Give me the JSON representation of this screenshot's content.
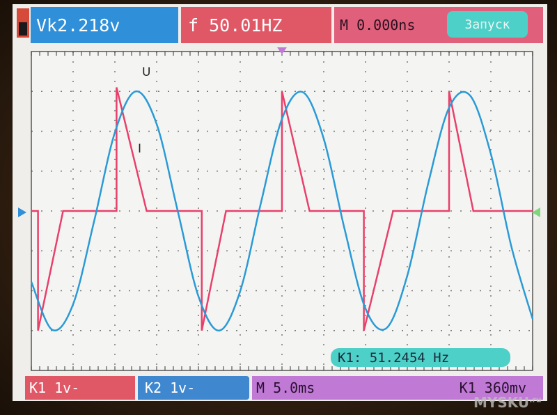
{
  "header": {
    "vk": "Vk2.218v",
    "frequency": "f 50.01HZ",
    "delay": "M 0.000ns",
    "run_button": "Запуск"
  },
  "footer": {
    "ch1_scale": "K1 1v-",
    "ch2_scale": "K2 1v-",
    "timebase": "M 5.0ms",
    "trigger": "K1 360mv"
  },
  "measurement": "K1: 51.2454 Hz",
  "watermark": "MYSKU",
  "watermark_suffix": ".ru",
  "colors": {
    "voltage_trace": "#2a9ad6",
    "current_trace": "#e8406a",
    "ch1": "#e05866",
    "ch2": "#2f8fd8",
    "accent": "#4dd0c8"
  },
  "chart_data": {
    "type": "line",
    "xlabel": "",
    "ylabel": "",
    "x_unit_per_div": "5.0ms",
    "y_unit_per_div": "1v",
    "xlim": [
      0,
      60
    ],
    "ylim": [
      -4,
      4
    ],
    "grid": true,
    "series": [
      {
        "name": "U",
        "color": "#2a9ad6",
        "points": [
          [
            0,
            -1.78
          ],
          [
            2.5,
            -2.98
          ],
          [
            5,
            -2.34
          ],
          [
            7.5,
            -0.27
          ],
          [
            10,
            1.97
          ],
          [
            12.5,
            3.0
          ],
          [
            15,
            2.18
          ],
          [
            17.5,
            0.02
          ],
          [
            20,
            -2.14
          ],
          [
            22.5,
            -3.0
          ],
          [
            25,
            -2.01
          ],
          [
            27.5,
            0.22
          ],
          [
            30,
            2.31
          ],
          [
            32.5,
            2.98
          ],
          [
            35,
            1.81
          ],
          [
            37.5,
            -0.46
          ],
          [
            40,
            -2.45
          ],
          [
            42.5,
            -2.94
          ],
          [
            45,
            -1.62
          ],
          [
            47.5,
            0.69
          ],
          [
            50,
            2.59
          ],
          [
            52.5,
            2.9
          ],
          [
            55,
            1.43
          ],
          [
            57.5,
            -0.93
          ],
          [
            60,
            -2.71
          ]
        ]
      },
      {
        "name": "I",
        "color": "#e8406a",
        "points": [
          [
            0,
            0
          ],
          [
            0.8,
            0
          ],
          [
            0.8,
            -3
          ],
          [
            3.8,
            0
          ],
          [
            10.2,
            0
          ],
          [
            10.2,
            3.1
          ],
          [
            13.8,
            0
          ],
          [
            20.4,
            0
          ],
          [
            20.4,
            -3
          ],
          [
            23.3,
            0
          ],
          [
            30,
            0
          ],
          [
            30,
            3
          ],
          [
            33.3,
            0
          ],
          [
            39.8,
            0
          ],
          [
            39.8,
            -3
          ],
          [
            43.3,
            0
          ],
          [
            50,
            0
          ],
          [
            50,
            3
          ],
          [
            52.9,
            0
          ],
          [
            60,
            0
          ]
        ]
      }
    ]
  }
}
